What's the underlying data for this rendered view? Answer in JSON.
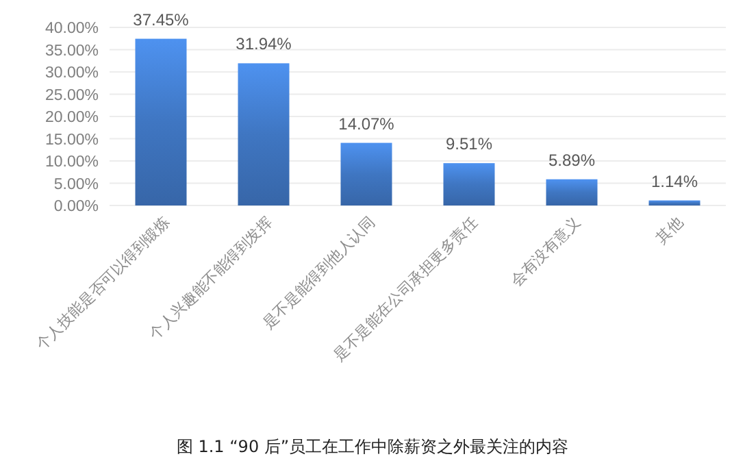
{
  "chart_data": {
    "type": "bar",
    "title": "图 1.1 “90 后”员工在工作中除薪资之外最关注的内容",
    "categories": [
      "个人技能是否可以得到锻炼",
      "个人兴趣能不能得到发挥",
      "是不是能得到他人认同",
      "是不是能在公司承担更多责任",
      "会有没有意义",
      "其他"
    ],
    "values": [
      37.45,
      31.94,
      14.07,
      9.51,
      5.89,
      1.14
    ],
    "value_labels": [
      "37.45%",
      "31.94%",
      "14.07%",
      "9.51%",
      "5.89%",
      "1.14%"
    ],
    "color": "#3f76c2",
    "ylim": [
      0,
      40
    ],
    "yticks": [
      {
        "value": 0,
        "label": "0.00%"
      },
      {
        "value": 5,
        "label": "5.00%"
      },
      {
        "value": 10,
        "label": "10.00%"
      },
      {
        "value": 15,
        "label": "15.00%"
      },
      {
        "value": 20,
        "label": "20.00%"
      },
      {
        "value": 25,
        "label": "25.00%"
      },
      {
        "value": 30,
        "label": "30.00%"
      },
      {
        "value": 35,
        "label": "35.00%"
      },
      {
        "value": 40,
        "label": "40.00%"
      }
    ],
    "grid": "y"
  }
}
